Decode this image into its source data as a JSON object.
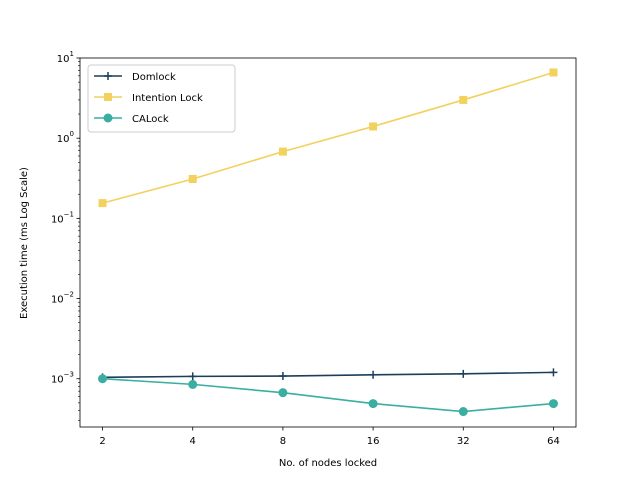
{
  "chart_data": {
    "type": "line",
    "title": "",
    "xlabel": "No. of nodes locked",
    "ylabel": "Execution time (ms Log Scale)",
    "x": [
      2,
      4,
      8,
      16,
      32,
      64
    ],
    "x_tick_labels": [
      "2",
      "4",
      "8",
      "16",
      "32",
      "64"
    ],
    "yscale": "log",
    "ylim": [
      0.00025,
      10
    ],
    "y_ticks": [
      {
        "value": 0.001,
        "base": "10",
        "exp": "−3"
      },
      {
        "value": 0.01,
        "base": "10",
        "exp": "−2"
      },
      {
        "value": 0.1,
        "base": "10",
        "exp": "−1"
      },
      {
        "value": 1,
        "base": "10",
        "exp": "0"
      },
      {
        "value": 10,
        "base": "10",
        "exp": "1"
      }
    ],
    "grid": false,
    "legend_position": "top-left",
    "series": [
      {
        "name": "Domlock",
        "color": "#1a3e5c",
        "marker": "plus",
        "values": [
          0.00104,
          0.00107,
          0.00108,
          0.00112,
          0.00115,
          0.0012
        ]
      },
      {
        "name": "Intention Lock",
        "color": "#f2d15c",
        "marker": "square",
        "values": [
          0.155,
          0.31,
          0.68,
          1.4,
          3.0,
          6.6
        ]
      },
      {
        "name": "CALock",
        "color": "#3aaea0",
        "marker": "circle",
        "values": [
          0.001,
          0.00085,
          0.00067,
          0.00049,
          0.00039,
          0.00049
        ]
      }
    ]
  }
}
